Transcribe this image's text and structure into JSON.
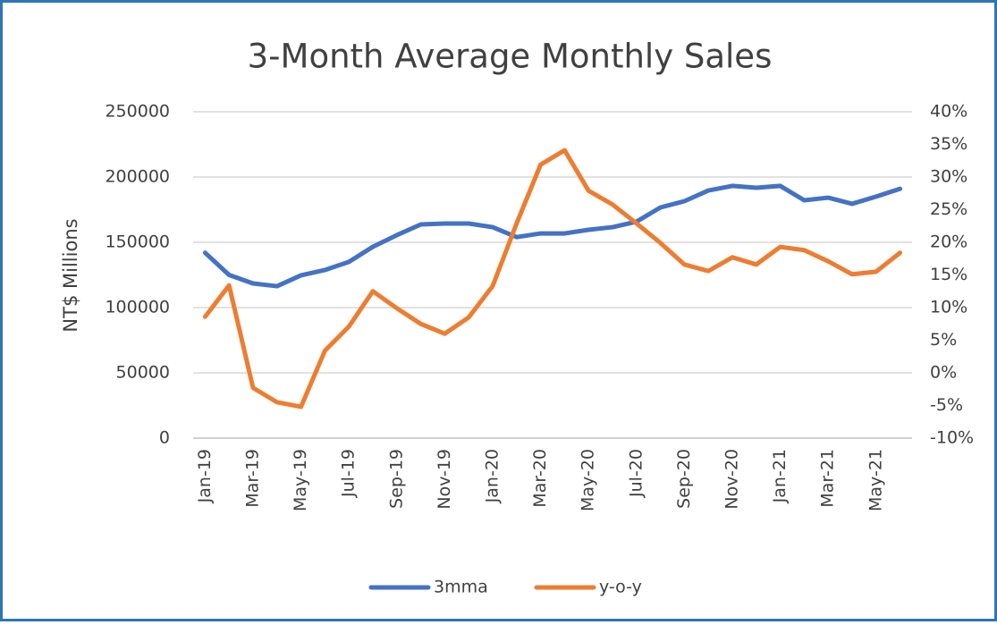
{
  "chart_data": {
    "type": "line",
    "title": "3-Month Average Monthly Sales",
    "ylabel": "NT$ Millions",
    "categories": [
      "Jan-19",
      null,
      "Mar-19",
      null,
      "May-19",
      null,
      "Jul-19",
      null,
      "Sep-19",
      null,
      "Nov-19",
      null,
      "Jan-20",
      null,
      "Mar-20",
      null,
      "May-20",
      null,
      "Jul-20",
      null,
      "Sep-20",
      null,
      "Nov-20",
      null,
      "Jan-21",
      null,
      "Mar-21",
      null,
      "May-21",
      null
    ],
    "series": [
      {
        "name": "3mma",
        "color": "#4472c4",
        "values": [
          142000,
          125000,
          118500,
          116400,
          124700,
          128800,
          135000,
          146600,
          155500,
          163700,
          164400,
          164400,
          161600,
          154000,
          156800,
          156800,
          159600,
          161600,
          165800,
          176700,
          181500,
          189700,
          193200,
          191800,
          193200,
          182200,
          184200,
          179500,
          185000,
          191000
        ]
      },
      {
        "name": "y-o-y",
        "color": "#ed7d31",
        "axis": "y2",
        "values": [
          8.6,
          13.4,
          -2.3,
          -4.5,
          -5.2,
          3.4,
          7.1,
          12.5,
          9.9,
          7.5,
          6.0,
          8.5,
          13.3,
          22.9,
          31.9,
          34.1,
          27.9,
          25.8,
          22.9,
          19.9,
          16.6,
          15.6,
          17.7,
          16.6,
          19.3,
          18.8,
          17.1,
          15.1,
          15.5,
          18.4
        ]
      }
    ],
    "ylim": [
      0,
      250000
    ],
    "yticks": [
      0,
      50000,
      100000,
      150000,
      200000,
      250000
    ],
    "y2lim": [
      -10,
      40
    ],
    "y2ticks": [
      {
        "value": -10,
        "label": "-10%"
      },
      {
        "value": -5,
        "label": "-5%"
      },
      {
        "value": 0,
        "label": "0%"
      },
      {
        "value": 5,
        "label": "5%"
      },
      {
        "value": 10,
        "label": "10%"
      },
      {
        "value": 15,
        "label": "15%"
      },
      {
        "value": 20,
        "label": "20%"
      },
      {
        "value": 25,
        "label": "25%"
      },
      {
        "value": 30,
        "label": "30%"
      },
      {
        "value": 35,
        "label": "35%"
      },
      {
        "value": 40,
        "label": "40%"
      }
    ],
    "grid": true,
    "legend": "bottom"
  }
}
